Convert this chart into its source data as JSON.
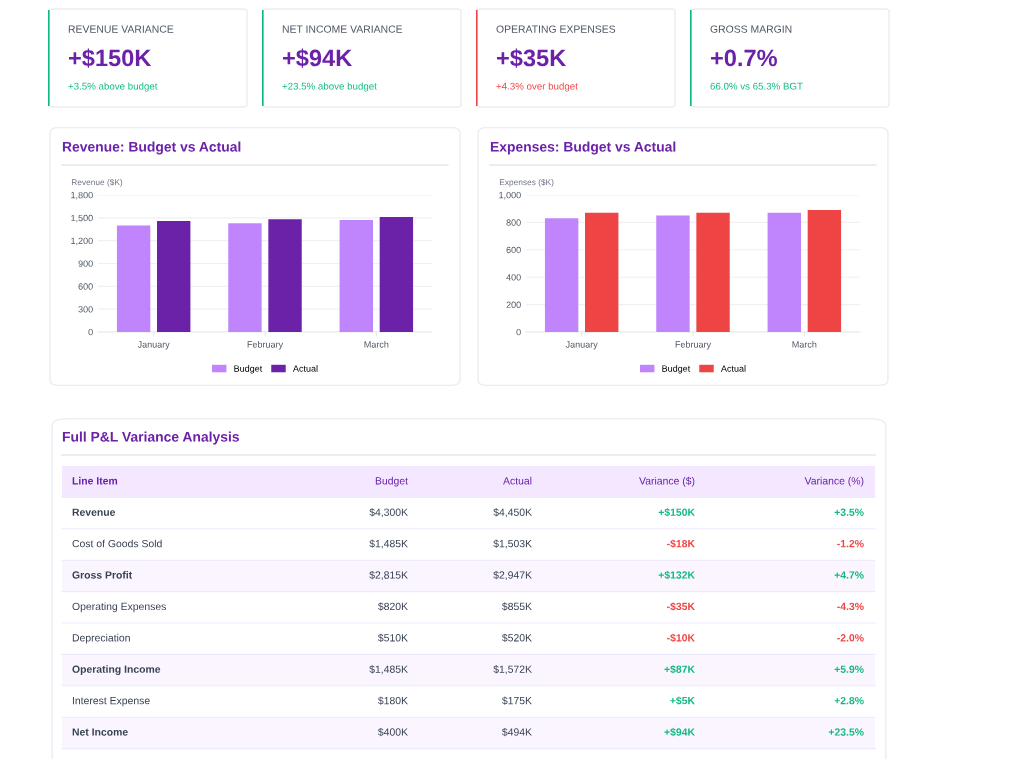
{
  "chart_data": [
    {
      "type": "other",
      "colors": [
        "#10b981",
        "#10b981",
        "#ef4444",
        "#10b981"
      ],
      "annotations": [
        "REVENUE VARIANCE",
        "+$150K",
        "+3.5% above budget",
        "NET INCOME VARIANCE",
        "+$94K",
        "+23.5% above budget",
        "OPERATING EXPENSES",
        "+$35K",
        "+4.3% over budget",
        "GROSS MARGIN",
        "+0.7%",
        "66.0% vs 65.3% BGT"
      ]
    },
    {
      "type": "bar",
      "title": "Revenue: Budget vs Actual",
      "ylabel": "Revenue ($K)",
      "categories": [
        "January",
        "February",
        "March"
      ],
      "series": [
        {
          "name": "Budget",
          "color": "#c084fc",
          "values": [
            1400,
            1430,
            1470
          ]
        },
        {
          "name": "Actual",
          "color": "#6b21a8",
          "values": [
            1460,
            1480,
            1510
          ]
        }
      ],
      "ylim": [
        0,
        1800
      ],
      "yticks": [
        0,
        300,
        600,
        900,
        {
          "value": 1200,
          "label": "1,200"
        },
        {
          "value": 1500,
          "label": "1,500"
        },
        {
          "value": 1800,
          "label": "1,800"
        }
      ],
      "grid": "y",
      "legend": "bottom"
    },
    {
      "type": "bar",
      "title": "Expenses: Budget vs Actual",
      "ylabel": "Expenses ($K)",
      "categories": [
        "January",
        "February",
        "March"
      ],
      "series": [
        {
          "name": "Budget",
          "color": "#c084fc",
          "values": [
            830,
            850,
            870
          ]
        },
        {
          "name": "Actual",
          "color": "#ef4444",
          "values": [
            870,
            870,
            890
          ]
        }
      ],
      "ylim": [
        0,
        1000
      ],
      "yticks": [
        0,
        200,
        400,
        600,
        800,
        {
          "value": 1000,
          "label": "1,000"
        }
      ],
      "grid": "y",
      "legend": "bottom"
    },
    {
      "type": "other",
      "title": "Full P&L Variance Analysis",
      "colors": [
        "#10b981",
        "#ef4444",
        "#10b981",
        "#ef4444",
        "#ef4444",
        "#10b981",
        "#10b981",
        "#10b981"
      ],
      "annotations": [
        "Line Item",
        "Budget",
        "Actual",
        "Variance ($)",
        "Variance (%)",
        "Revenue",
        "$4,300K",
        "$4,450K",
        "+$150K",
        "+3.5%",
        "Cost of Goods Sold",
        "$1,485K",
        "$1,503K",
        "-$18K",
        "-1.2%",
        "Gross Profit",
        "$2,815K",
        "$2,947K",
        "+$132K",
        "+4.7%",
        "Operating Expenses",
        "$820K",
        "$855K",
        "-$35K",
        "-4.3%",
        "Depreciation",
        "$510K",
        "$520K",
        "-$10K",
        "-2.0%",
        "Operating Income",
        "$1,485K",
        "$1,572K",
        "+$87K",
        "+5.9%",
        "Interest Expense",
        "$180K",
        "$175K",
        "+$5K",
        "+2.8%",
        "Net Income",
        "$400K",
        "$494K",
        "+$94K",
        "+23.5%"
      ]
    }
  ]
}
